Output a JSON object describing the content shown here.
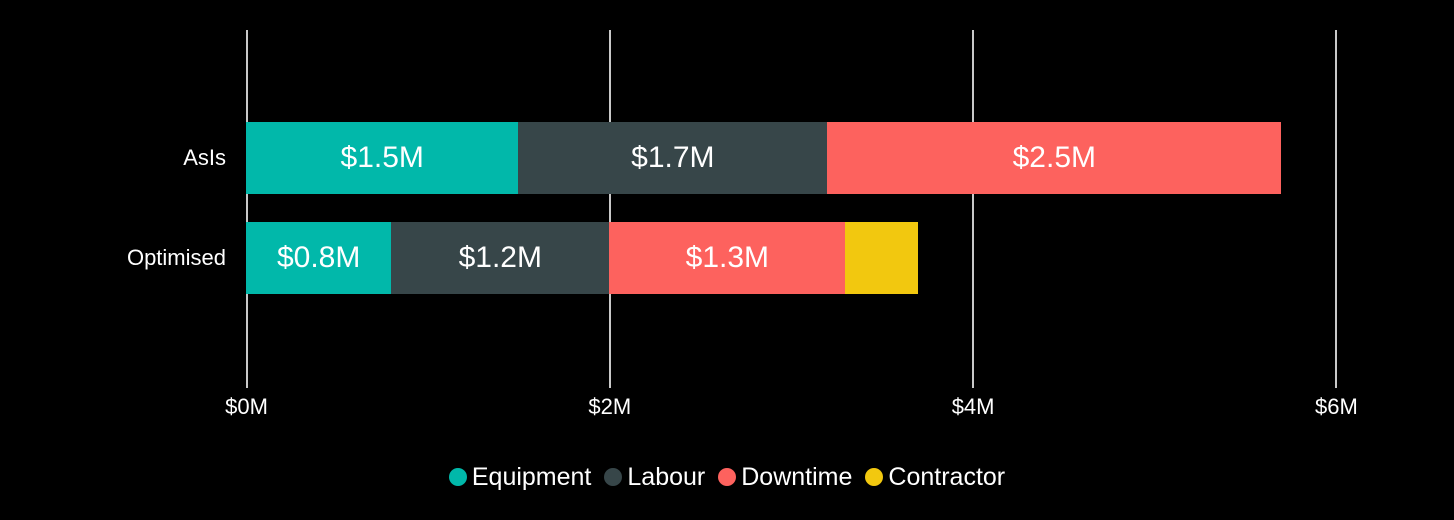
{
  "chart": {
    "background": "#000000",
    "text_color": "#FFFFFF",
    "gridline_color": "#C9C9C9"
  },
  "chart_data": {
    "type": "bar",
    "orientation": "horizontal",
    "stacked": true,
    "title": "",
    "categories": [
      "AsIs",
      "Optimised"
    ],
    "series": [
      {
        "name": "Equipment",
        "color": "#01B8AA",
        "values": [
          1.5,
          0.8
        ],
        "labels": [
          "$1.5M",
          "$0.8M"
        ]
      },
      {
        "name": "Labour",
        "color": "#374649",
        "values": [
          1.7,
          1.2
        ],
        "labels": [
          "$1.7M",
          "$1.2M"
        ]
      },
      {
        "name": "Downtime",
        "color": "#FD625E",
        "values": [
          2.5,
          1.3
        ],
        "labels": [
          "$2.5M",
          "$1.3M"
        ]
      },
      {
        "name": "Contractor",
        "color": "#F2C80F",
        "values": [
          0,
          0.4
        ],
        "labels": [
          "",
          ""
        ]
      }
    ],
    "x_axis": {
      "ticks": [
        0,
        2,
        4,
        6
      ],
      "tick_labels": [
        "$0M",
        "$2M",
        "$4M",
        "$6M"
      ],
      "range": [
        0,
        6.65
      ],
      "units": "millions USD"
    },
    "category_totals": {
      "AsIs": 5.7,
      "Optimised": 3.7
    },
    "legend": {
      "position": "bottom-center",
      "items": [
        "Equipment",
        "Labour",
        "Downtime",
        "Contractor"
      ]
    },
    "grid": true
  }
}
